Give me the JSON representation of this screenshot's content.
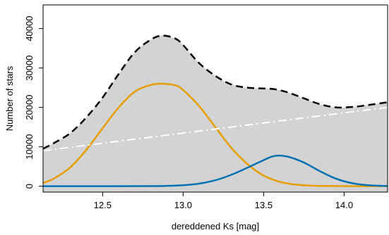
{
  "chart_data": {
    "type": "line",
    "title": "",
    "xlabel": "dereddened Ks [mag]",
    "ylabel": "Number of stars",
    "xlim": [
      12.13,
      14.27
    ],
    "ylim": [
      -1500,
      46000
    ],
    "xticks": [
      12.5,
      13.0,
      13.5,
      14.0
    ],
    "xtick_labels": [
      "12.5",
      "13.0",
      "13.5",
      "14.0"
    ],
    "yticks": [
      0,
      10000,
      20000,
      30000,
      40000
    ],
    "ytick_labels": [
      "0",
      "10000",
      "20000",
      "30000",
      "40000"
    ],
    "grid": false,
    "legend": "none",
    "series": [
      {
        "style": "filled area",
        "color": "#d3d3d3",
        "x": [
          12.13,
          12.2,
          12.3,
          12.4,
          12.5,
          12.6,
          12.7,
          12.8,
          12.87,
          12.95,
          13.0,
          13.1,
          13.2,
          13.3,
          13.4,
          13.5,
          13.57,
          13.65,
          13.75,
          13.85,
          13.95,
          14.05,
          14.15,
          14.27
        ],
        "values": [
          9500,
          11000,
          13500,
          17500,
          22500,
          28500,
          34000,
          37200,
          38200,
          37500,
          35800,
          31200,
          28000,
          25800,
          25000,
          24800,
          24600,
          23800,
          22300,
          20800,
          20000,
          20100,
          20600,
          21300
        ]
      },
      {
        "style": "dashed",
        "color": "#000000",
        "x": [
          12.13,
          12.2,
          12.3,
          12.4,
          12.5,
          12.6,
          12.7,
          12.8,
          12.87,
          12.95,
          13.0,
          13.1,
          13.2,
          13.3,
          13.4,
          13.5,
          13.57,
          13.65,
          13.75,
          13.85,
          13.95,
          14.05,
          14.15,
          14.27
        ],
        "values": [
          9500,
          11000,
          13500,
          17500,
          22500,
          28500,
          34000,
          37200,
          38200,
          37500,
          35800,
          31200,
          28000,
          25800,
          25000,
          24800,
          24600,
          23800,
          22300,
          20800,
          20000,
          20100,
          20600,
          21300
        ]
      },
      {
        "style": "solid",
        "color": "#E69F00",
        "x": [
          12.13,
          12.2,
          12.3,
          12.4,
          12.5,
          12.6,
          12.7,
          12.8,
          12.87,
          12.95,
          13.0,
          13.1,
          13.2,
          13.3,
          13.4,
          13.5,
          13.6,
          13.7,
          13.8,
          13.9,
          14.0,
          14.1,
          14.2,
          14.27
        ],
        "values": [
          800,
          2000,
          4800,
          9300,
          14700,
          20000,
          24000,
          25700,
          26000,
          25600,
          24400,
          20300,
          15000,
          9700,
          5600,
          2700,
          1100,
          400,
          120,
          30,
          0,
          0,
          0,
          0
        ]
      },
      {
        "style": "solid",
        "color": "#0072B2",
        "x": [
          12.13,
          12.5,
          12.8,
          12.9,
          13.0,
          13.1,
          13.2,
          13.3,
          13.4,
          13.5,
          13.57,
          13.65,
          13.75,
          13.85,
          13.95,
          14.05,
          14.15,
          14.27
        ],
        "values": [
          0,
          0,
          20,
          80,
          250,
          650,
          1500,
          2900,
          4700,
          6600,
          7700,
          7500,
          6000,
          3800,
          1900,
          750,
          240,
          40
        ]
      },
      {
        "style": "dot-dash",
        "color": "#ffffff",
        "x": [
          12.13,
          14.27
        ],
        "values": [
          9000,
          20000
        ]
      }
    ]
  }
}
